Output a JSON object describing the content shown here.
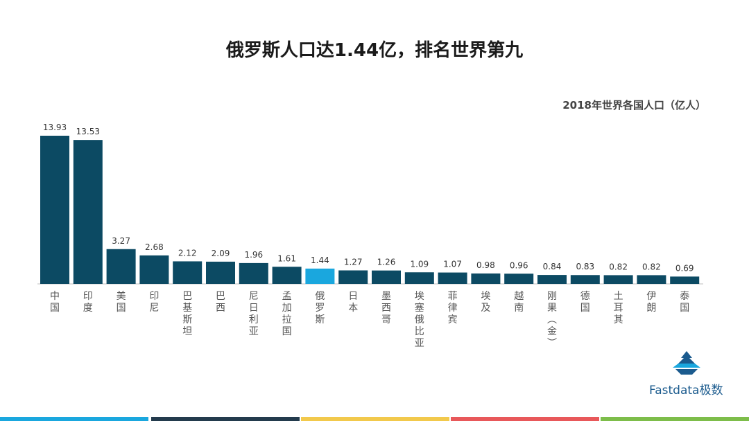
{
  "chart_data": {
    "type": "bar",
    "title": "俄罗斯人口达1.44亿，排名世界第九",
    "subtitle": "2018年世界各国人口（亿人）",
    "categories": [
      "中国",
      "印度",
      "美国",
      "印尼",
      "巴基斯坦",
      "巴西",
      "尼日利亚",
      "孟加拉国",
      "俄罗斯",
      "日本",
      "墨西哥",
      "埃塞俄比亚",
      "菲律宾",
      "埃及",
      "越南",
      "刚果（金）",
      "德国",
      "土耳其",
      "伊朗",
      "泰国"
    ],
    "values": [
      13.93,
      13.53,
      3.27,
      2.68,
      2.12,
      2.09,
      1.96,
      1.61,
      1.44,
      1.27,
      1.26,
      1.09,
      1.07,
      0.98,
      0.96,
      0.84,
      0.83,
      0.82,
      0.82,
      0.69
    ],
    "value_labels": [
      "13.93",
      "13.53",
      "3.27",
      "2.68",
      "2.12",
      "2.09",
      "1.96",
      "1.61",
      "1.44",
      "1.27",
      "1.26",
      "1.09",
      "1.07",
      "0.98",
      "0.96",
      "0.84",
      "0.83",
      "0.82",
      "0.82",
      "0.69"
    ],
    "highlight": "俄罗斯",
    "colors": {
      "bar": "#0c4a63",
      "highlight": "#1aa7de"
    }
  },
  "logo": {
    "text": "Fastdata极数",
    "color": "#1b5b8e"
  },
  "footer_colors": [
    "#1aa7de",
    "#233b4d",
    "#f2c94c",
    "#e8585a",
    "#7dbd4a"
  ]
}
